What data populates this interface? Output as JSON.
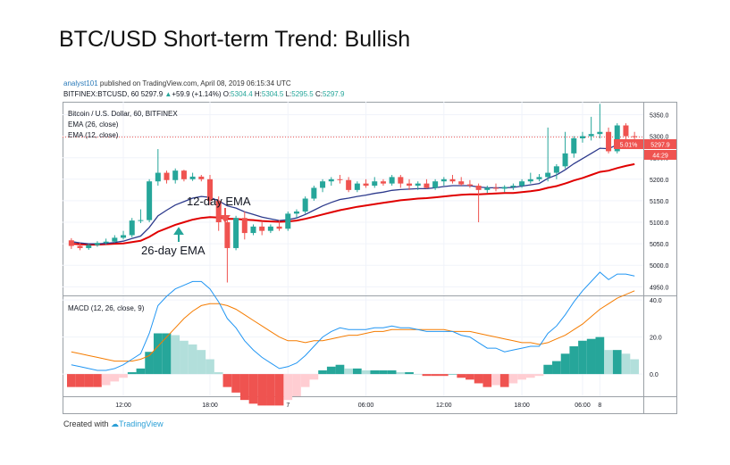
{
  "page_title": "BTC/USD Short-term Trend: Bullish",
  "publisher": {
    "user": "analyst101",
    "text": " published on TradingView.com, April 08, 2019 06:15:34 UTC"
  },
  "quote": {
    "symbol": "BITFINEX:BTCUSD, 60",
    "last": "5297.9",
    "arrow": "▲",
    "change": "+59.9 (+1.14%)",
    "o_label": "O:",
    "o": "5304.4",
    "h_label": "H:",
    "h": "5304.5",
    "l_label": "L:",
    "l": "5295.5",
    "c_label": "C:",
    "c": "5297.9"
  },
  "legend": {
    "series_name": "Bitcoin / U.S. Dollar, 60, BITFINEX",
    "ema26": "EMA (26, close)",
    "ema12": "EMA (12, close)",
    "macd": "MACD (12, 26, close, 9)"
  },
  "annotations": {
    "ema12": "12-day EMA",
    "ema26": "26-day EMA"
  },
  "price_tags": {
    "pct": "5.01%",
    "price": "5297.9",
    "countdown": "44:29"
  },
  "footer": {
    "created_with": "Created with",
    "brand": "TradingView"
  },
  "colors": {
    "up": "#26a69a",
    "down": "#ef5350",
    "ema12": "#e00000",
    "ema26": "#2d3a8c",
    "macd_line": "#2196f3",
    "signal_line": "#f57c00",
    "hist_up_strong": "#26a69a",
    "hist_up_weak": "#b2dfdb",
    "hist_down_strong": "#ef5350",
    "hist_down_weak": "#ffcdd2"
  },
  "chart_data": [
    {
      "type": "candlestick",
      "title": "Bitcoin / U.S. Dollar, 60, BITFINEX",
      "x_tick_labels": [
        "12:00",
        "18:00",
        "7",
        "06:00",
        "12:00",
        "18:00",
        "8",
        "06:00"
      ],
      "y_tick_labels": [
        "5350.0",
        "5300.0",
        "5250.0",
        "5200.0",
        "5150.0",
        "5100.0",
        "5050.0",
        "5000.0",
        "4950.0"
      ],
      "ylim": [
        4930,
        5380
      ],
      "candles": [
        {
          "o": 5058,
          "h": 5063,
          "l": 5038,
          "c": 5045
        },
        {
          "o": 5045,
          "h": 5052,
          "l": 5035,
          "c": 5040
        },
        {
          "o": 5040,
          "h": 5050,
          "l": 5036,
          "c": 5047
        },
        {
          "o": 5047,
          "h": 5056,
          "l": 5043,
          "c": 5052
        },
        {
          "o": 5052,
          "h": 5062,
          "l": 5048,
          "c": 5055
        },
        {
          "o": 5055,
          "h": 5070,
          "l": 5052,
          "c": 5064
        },
        {
          "o": 5064,
          "h": 5080,
          "l": 5060,
          "c": 5070
        },
        {
          "o": 5070,
          "h": 5110,
          "l": 5065,
          "c": 5104
        },
        {
          "o": 5104,
          "h": 5130,
          "l": 5098,
          "c": 5105
        },
        {
          "o": 5105,
          "h": 5200,
          "l": 5100,
          "c": 5195
        },
        {
          "o": 5195,
          "h": 5270,
          "l": 5185,
          "c": 5215
        },
        {
          "o": 5215,
          "h": 5220,
          "l": 5190,
          "c": 5198
        },
        {
          "o": 5198,
          "h": 5225,
          "l": 5190,
          "c": 5220
        },
        {
          "o": 5220,
          "h": 5222,
          "l": 5195,
          "c": 5200
        },
        {
          "o": 5200,
          "h": 5215,
          "l": 5196,
          "c": 5206
        },
        {
          "o": 5206,
          "h": 5210,
          "l": 5195,
          "c": 5200
        },
        {
          "o": 5200,
          "h": 5210,
          "l": 5140,
          "c": 5150
        },
        {
          "o": 5150,
          "h": 5160,
          "l": 5080,
          "c": 5100
        },
        {
          "o": 5100,
          "h": 5110,
          "l": 4960,
          "c": 5040
        },
        {
          "o": 5040,
          "h": 5115,
          "l": 5035,
          "c": 5110
        },
        {
          "o": 5110,
          "h": 5125,
          "l": 5060,
          "c": 5075
        },
        {
          "o": 5075,
          "h": 5095,
          "l": 5070,
          "c": 5090
        },
        {
          "o": 5090,
          "h": 5100,
          "l": 5070,
          "c": 5080
        },
        {
          "o": 5080,
          "h": 5095,
          "l": 5075,
          "c": 5090
        },
        {
          "o": 5090,
          "h": 5105,
          "l": 5080,
          "c": 5085
        },
        {
          "o": 5085,
          "h": 5125,
          "l": 5080,
          "c": 5120
        },
        {
          "o": 5120,
          "h": 5130,
          "l": 5110,
          "c": 5125
        },
        {
          "o": 5125,
          "h": 5160,
          "l": 5120,
          "c": 5155
        },
        {
          "o": 5155,
          "h": 5185,
          "l": 5150,
          "c": 5180
        },
        {
          "o": 5180,
          "h": 5200,
          "l": 5170,
          "c": 5195
        },
        {
          "o": 5195,
          "h": 5205,
          "l": 5185,
          "c": 5200
        },
        {
          "o": 5200,
          "h": 5210,
          "l": 5190,
          "c": 5198
        },
        {
          "o": 5198,
          "h": 5205,
          "l": 5170,
          "c": 5175
        },
        {
          "o": 5175,
          "h": 5195,
          "l": 5170,
          "c": 5190
        },
        {
          "o": 5190,
          "h": 5200,
          "l": 5180,
          "c": 5185
        },
        {
          "o": 5185,
          "h": 5205,
          "l": 5180,
          "c": 5195
        },
        {
          "o": 5195,
          "h": 5200,
          "l": 5185,
          "c": 5190
        },
        {
          "o": 5190,
          "h": 5210,
          "l": 5185,
          "c": 5205
        },
        {
          "o": 5205,
          "h": 5210,
          "l": 5180,
          "c": 5190
        },
        {
          "o": 5190,
          "h": 5200,
          "l": 5175,
          "c": 5185
        },
        {
          "o": 5185,
          "h": 5195,
          "l": 5175,
          "c": 5190
        },
        {
          "o": 5190,
          "h": 5200,
          "l": 5178,
          "c": 5180
        },
        {
          "o": 5180,
          "h": 5200,
          "l": 5175,
          "c": 5195
        },
        {
          "o": 5195,
          "h": 5205,
          "l": 5185,
          "c": 5200
        },
        {
          "o": 5200,
          "h": 5210,
          "l": 5190,
          "c": 5195
        },
        {
          "o": 5195,
          "h": 5205,
          "l": 5185,
          "c": 5188
        },
        {
          "o": 5188,
          "h": 5198,
          "l": 5180,
          "c": 5185
        },
        {
          "o": 5185,
          "h": 5190,
          "l": 5100,
          "c": 5175
        },
        {
          "o": 5175,
          "h": 5185,
          "l": 5168,
          "c": 5180
        },
        {
          "o": 5180,
          "h": 5190,
          "l": 5172,
          "c": 5178
        },
        {
          "o": 5178,
          "h": 5186,
          "l": 5170,
          "c": 5182
        },
        {
          "o": 5182,
          "h": 5190,
          "l": 5175,
          "c": 5185
        },
        {
          "o": 5185,
          "h": 5200,
          "l": 5180,
          "c": 5195
        },
        {
          "o": 5195,
          "h": 5215,
          "l": 5190,
          "c": 5200
        },
        {
          "o": 5200,
          "h": 5212,
          "l": 5195,
          "c": 5205
        },
        {
          "o": 5205,
          "h": 5320,
          "l": 5195,
          "c": 5215
        },
        {
          "o": 5215,
          "h": 5235,
          "l": 5200,
          "c": 5230
        },
        {
          "o": 5230,
          "h": 5310,
          "l": 5225,
          "c": 5260
        },
        {
          "o": 5260,
          "h": 5300,
          "l": 5250,
          "c": 5295
        },
        {
          "o": 5295,
          "h": 5310,
          "l": 5285,
          "c": 5300
        },
        {
          "o": 5300,
          "h": 5345,
          "l": 5290,
          "c": 5305
        },
        {
          "o": 5305,
          "h": 5375,
          "l": 5295,
          "c": 5310
        },
        {
          "o": 5310,
          "h": 5320,
          "l": 5260,
          "c": 5265
        },
        {
          "o": 5265,
          "h": 5330,
          "l": 5260,
          "c": 5325
        },
        {
          "o": 5325,
          "h": 5330,
          "l": 5280,
          "c": 5300
        },
        {
          "o": 5300,
          "h": 5310,
          "l": 5290,
          "c": 5297.9
        }
      ],
      "ema12": [
        5055,
        5052,
        5050,
        5050,
        5051,
        5053,
        5056,
        5062,
        5068,
        5088,
        5115,
        5128,
        5140,
        5148,
        5156,
        5160,
        5158,
        5150,
        5138,
        5133,
        5124,
        5118,
        5112,
        5108,
        5104,
        5106,
        5110,
        5118,
        5128,
        5138,
        5146,
        5153,
        5156,
        5160,
        5163,
        5167,
        5170,
        5174,
        5176,
        5177,
        5178,
        5178,
        5180,
        5183,
        5185,
        5185,
        5185,
        5182,
        5180,
        5180,
        5180,
        5181,
        5184,
        5187,
        5190,
        5202,
        5210,
        5222,
        5236,
        5248,
        5260,
        5272,
        5271,
        5280,
        5285,
        5288
      ],
      "ema26": [
        5050,
        5049,
        5048,
        5048,
        5049,
        5050,
        5051,
        5054,
        5057,
        5066,
        5078,
        5086,
        5094,
        5100,
        5106,
        5110,
        5112,
        5111,
        5108,
        5108,
        5106,
        5105,
        5103,
        5102,
        5101,
        5102,
        5104,
        5108,
        5113,
        5118,
        5123,
        5128,
        5132,
        5136,
        5139,
        5142,
        5145,
        5148,
        5151,
        5153,
        5155,
        5156,
        5158,
        5160,
        5162,
        5164,
        5165,
        5165,
        5166,
        5167,
        5168,
        5168,
        5170,
        5172,
        5175,
        5180,
        5184,
        5190,
        5197,
        5203,
        5210,
        5217,
        5220,
        5226,
        5231,
        5235
      ]
    },
    {
      "type": "macd",
      "title": "MACD (12, 26, close, 9)",
      "y_tick_labels": [
        "40.0",
        "20.0",
        "0.0"
      ],
      "ylim": [
        -12,
        42
      ],
      "macd": [
        5,
        4,
        3,
        2,
        2,
        3,
        5,
        8,
        11,
        22,
        37,
        42,
        46,
        48,
        50,
        50,
        46,
        39,
        30,
        25,
        18,
        13,
        9,
        6,
        3,
        4,
        6,
        10,
        15,
        20,
        23,
        25,
        24,
        24,
        24,
        25,
        25,
        26,
        25,
        25,
        24,
        23,
        23,
        23,
        23,
        21,
        20,
        17,
        14,
        14,
        12,
        13,
        14,
        15,
        15,
        22,
        26,
        32,
        39,
        45,
        50,
        55,
        51,
        54,
        54,
        53
      ],
      "signal": [
        12,
        11,
        10,
        9,
        8,
        7,
        7,
        7,
        8,
        10,
        15,
        20,
        25,
        30,
        34,
        37,
        38,
        38,
        37,
        35,
        32,
        29,
        26,
        23,
        20,
        18,
        18,
        17,
        18,
        18,
        19,
        20,
        21,
        21,
        22,
        23,
        23,
        24,
        24,
        24,
        24,
        24,
        24,
        24,
        23,
        23,
        23,
        22,
        21,
        20,
        19,
        18,
        17,
        17,
        16,
        17,
        19,
        21,
        24,
        27,
        31,
        35,
        38,
        41,
        43,
        45
      ],
      "histogram": [
        -7,
        -7,
        -7,
        -7,
        -6,
        -4,
        -2,
        1,
        3,
        12,
        22,
        22,
        21,
        18,
        16,
        13,
        8,
        1,
        -7,
        -10,
        -14,
        -16,
        -17,
        -17,
        -17,
        -14,
        -12,
        -7,
        -3,
        2,
        4,
        5,
        3,
        3,
        2,
        2,
        2,
        2,
        1,
        1,
        0,
        -1,
        -1,
        -1,
        0,
        -2,
        -3,
        -5,
        -7,
        -6,
        -7,
        -5,
        -3,
        -2,
        -1,
        5,
        7,
        11,
        15,
        18,
        19,
        20,
        13,
        13,
        11,
        8
      ]
    }
  ]
}
